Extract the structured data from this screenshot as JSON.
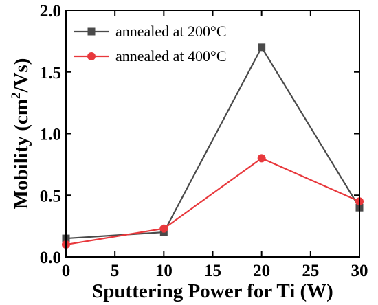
{
  "chart_data": {
    "type": "line",
    "xlabel": "Sputtering Power for Ti (W)",
    "ylabel": {
      "text": "Mobility (cm",
      "superscript": "2",
      "suffix": "/Vs)"
    },
    "xlim": [
      0,
      30
    ],
    "ylim": [
      0,
      2.0
    ],
    "xticks": [
      0,
      5,
      10,
      15,
      20,
      25,
      30
    ],
    "xtick_labels": [
      "0",
      "5",
      "10",
      "15",
      "20",
      "25",
      "30"
    ],
    "yticks": [
      0,
      0.5,
      1.0,
      1.5,
      2.0
    ],
    "ytick_labels": [
      "0.0",
      "0.5",
      "1.0",
      "1.5",
      "2.0"
    ],
    "grid": false,
    "legend_position": "top-left",
    "series": [
      {
        "name": "annealed at 200°C",
        "color": "#4a4a4a",
        "marker": "square",
        "x": [
          0,
          10,
          20,
          30
        ],
        "y": [
          0.15,
          0.2,
          1.7,
          0.4
        ]
      },
      {
        "name": "annealed at 400°C",
        "color": "#e8383c",
        "marker": "circle",
        "x": [
          0,
          10,
          20,
          30
        ],
        "y": [
          0.1,
          0.23,
          0.8,
          0.45
        ]
      }
    ]
  }
}
